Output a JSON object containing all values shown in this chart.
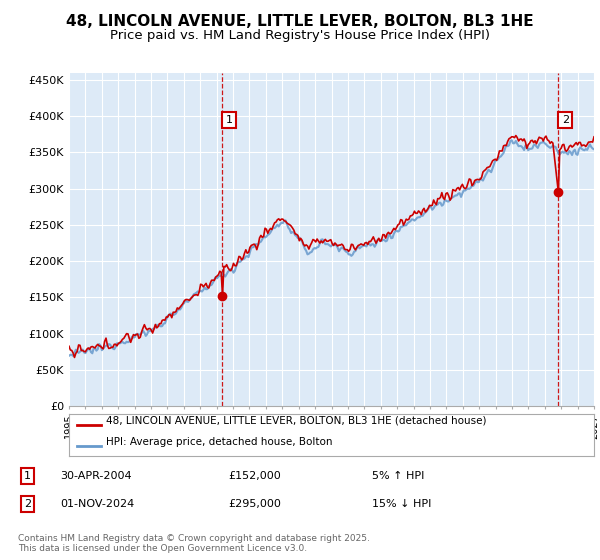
{
  "title": "48, LINCOLN AVENUE, LITTLE LEVER, BOLTON, BL3 1HE",
  "subtitle": "Price paid vs. HM Land Registry's House Price Index (HPI)",
  "ylim": [
    0,
    460000
  ],
  "yticks": [
    0,
    50000,
    100000,
    150000,
    200000,
    250000,
    300000,
    350000,
    400000,
    450000
  ],
  "ytick_labels": [
    "£0",
    "£50K",
    "£100K",
    "£150K",
    "£200K",
    "£250K",
    "£300K",
    "£350K",
    "£400K",
    "£450K"
  ],
  "background_color": "#ffffff",
  "plot_bg_color": "#ddeaf7",
  "grid_color": "#ffffff",
  "hpi_color": "#6699cc",
  "price_color": "#cc0000",
  "vline_color": "#cc0000",
  "purchase1_date_num": 2004.33,
  "purchase1_price": 152000,
  "purchase1_label": "1",
  "purchase2_date_num": 2024.83,
  "purchase2_price": 295000,
  "purchase2_label": "2",
  "legend_line1": "48, LINCOLN AVENUE, LITTLE LEVER, BOLTON, BL3 1HE (detached house)",
  "legend_line2": "HPI: Average price, detached house, Bolton",
  "table_row1": [
    "1",
    "30-APR-2004",
    "£152,000",
    "5% ↑ HPI"
  ],
  "table_row2": [
    "2",
    "01-NOV-2024",
    "£295,000",
    "15% ↓ HPI"
  ],
  "footer": "Contains HM Land Registry data © Crown copyright and database right 2025.\nThis data is licensed under the Open Government Licence v3.0.",
  "title_fontsize": 11,
  "subtitle_fontsize": 9.5,
  "hpi_linewidth": 1.5,
  "price_linewidth": 1.2
}
